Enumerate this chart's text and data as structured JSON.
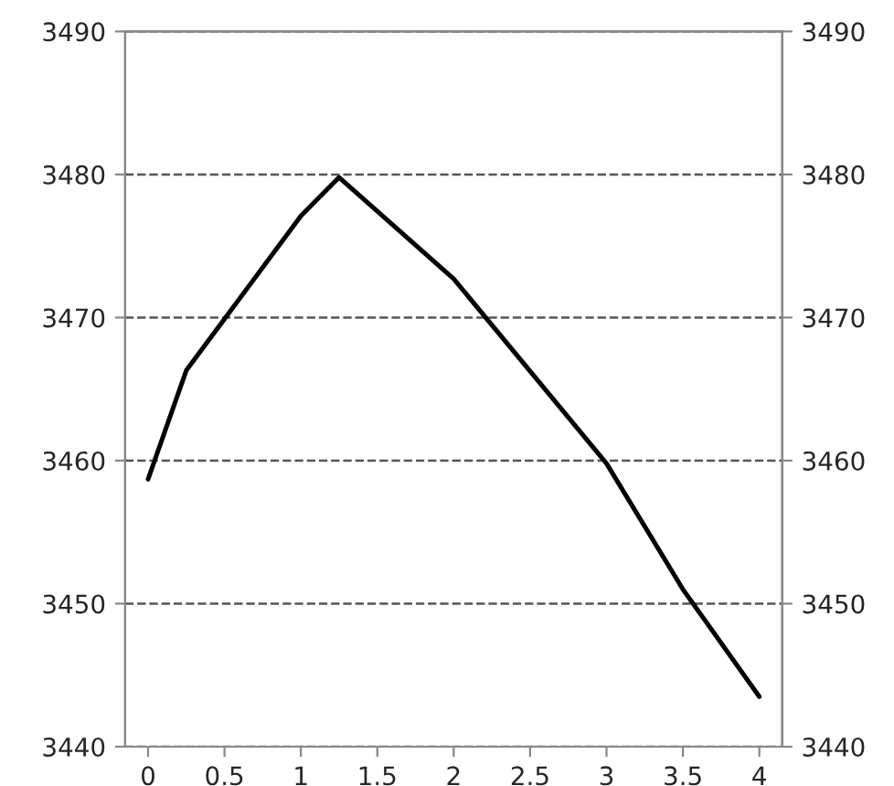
{
  "chart_data": {
    "type": "line",
    "x": [
      0,
      0.25,
      1,
      1.25,
      2,
      3,
      3.5,
      4
    ],
    "series": [
      {
        "color": "#000000",
        "values": [
          3458.7,
          3466.3,
          3477.1,
          3479.8,
          3472.7,
          3459.8,
          3451.0,
          3443.5
        ]
      }
    ],
    "xlim": [
      -0.15,
      4.15
    ],
    "xticks": [
      0,
      {
        "value": 0.5,
        "label": "0.5"
      },
      1,
      {
        "value": 1.5,
        "label": "1.5"
      },
      2,
      {
        "value": 2.5,
        "label": "2.5"
      },
      3,
      {
        "value": 3.5,
        "label": "3.5"
      },
      4
    ],
    "ylim": [
      3440,
      3490
    ],
    "yticks": [
      3440,
      3450,
      3460,
      3470,
      3480,
      3490
    ],
    "y2lim": [
      3440,
      3490
    ],
    "y2ticks": [
      3440,
      3450,
      3460,
      3470,
      3480,
      3490
    ],
    "grid": "y",
    "legend": false,
    "marker": "none",
    "line_style": "solid"
  }
}
